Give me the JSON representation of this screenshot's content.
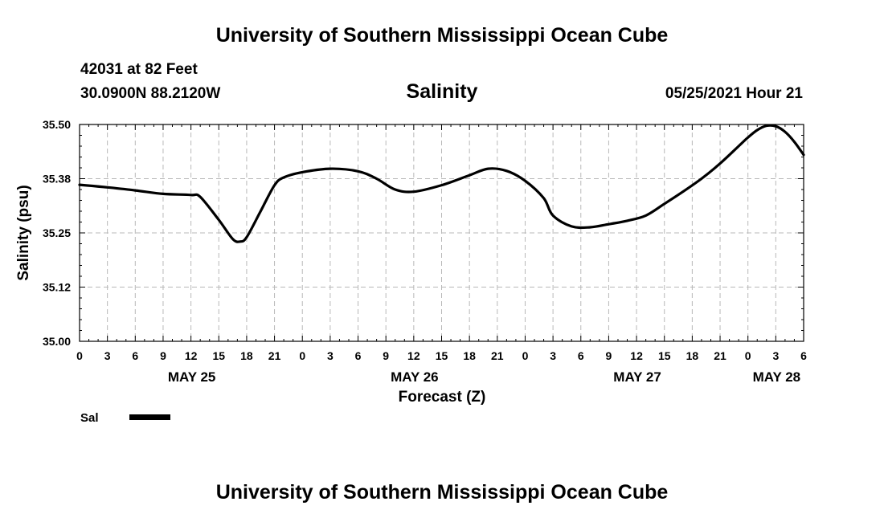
{
  "header": {
    "organization": "University of Southern Mississippi Ocean Cube",
    "station_depth": "42031 at 82 Feet",
    "station_coords": "30.0900N  88.2120W",
    "run_time": "05/25/2021 Hour 21"
  },
  "footer": {
    "organization": "University of Southern Mississippi Ocean Cube"
  },
  "chart_data": {
    "type": "line",
    "title": "Salinity",
    "xlabel": "Forecast (Z)",
    "ylabel": "Salinity (psu)",
    "ylim": [
      35.0,
      35.5
    ],
    "xlim": [
      0,
      78
    ],
    "y_ticks": [
      "35.00",
      "35.12",
      "35.25",
      "35.38",
      "35.50"
    ],
    "y_tick_values": [
      35.0,
      35.125,
      35.25,
      35.375,
      35.5
    ],
    "x_tick_hours": [
      0,
      3,
      6,
      9,
      12,
      15,
      18,
      21,
      24,
      27,
      30,
      33,
      36,
      39,
      42,
      45,
      48,
      51,
      54,
      57,
      60,
      63,
      66,
      69,
      72,
      75,
      78
    ],
    "x_tick_labels": [
      "0",
      "3",
      "6",
      "9",
      "12",
      "15",
      "18",
      "21",
      "0",
      "3",
      "6",
      "9",
      "12",
      "15",
      "18",
      "21",
      "0",
      "3",
      "6",
      "9",
      "12",
      "15",
      "18",
      "21",
      "0",
      "3",
      "6"
    ],
    "day_labels": [
      {
        "hour": 12,
        "label": "MAY 25"
      },
      {
        "hour": 36,
        "label": "MAY 26"
      },
      {
        "hour": 60,
        "label": "MAY 27"
      },
      {
        "hour": 75,
        "label": "MAY 28"
      }
    ],
    "grid": true,
    "legend": {
      "placement": "bottom-left",
      "label": "Sal"
    },
    "series": [
      {
        "name": "Sal",
        "color": "#000000",
        "x": [
          0,
          3,
          6,
          9,
          12,
          13,
          15,
          16.5,
          17.3,
          18,
          19.5,
          21,
          22,
          24,
          27,
          30,
          32,
          34,
          36,
          39,
          42,
          44,
          46,
          48,
          50,
          51,
          53,
          55,
          57,
          59,
          61,
          63,
          65,
          67,
          69,
          71,
          72,
          73,
          74,
          75,
          76,
          77,
          78
        ],
        "values": [
          35.361,
          35.355,
          35.348,
          35.34,
          35.3375,
          35.333,
          35.28,
          35.236,
          35.23,
          35.24,
          35.3,
          35.36,
          35.378,
          35.39,
          35.398,
          35.392,
          35.375,
          35.35,
          35.345,
          35.36,
          35.383,
          35.398,
          35.393,
          35.37,
          35.33,
          35.29,
          35.265,
          35.263,
          35.27,
          35.278,
          35.29,
          35.317,
          35.345,
          35.375,
          35.41,
          35.45,
          35.47,
          35.487,
          35.497,
          35.496,
          35.483,
          35.46,
          35.43
        ]
      }
    ]
  }
}
